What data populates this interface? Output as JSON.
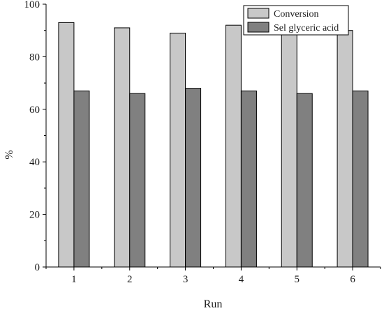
{
  "chart_data": {
    "type": "bar",
    "title": "",
    "xlabel": "Run",
    "ylabel": "%",
    "categories": [
      "1",
      "2",
      "3",
      "4",
      "5",
      "6"
    ],
    "series": [
      {
        "name": "Conversion",
        "values": [
          93,
          91,
          89,
          92,
          90,
          90
        ],
        "color": "#c8c8c8"
      },
      {
        "name": "Sel glyceric acid",
        "values": [
          67,
          66,
          68,
          67,
          66,
          67
        ],
        "color": "#808080"
      }
    ],
    "ylim": [
      0,
      100
    ],
    "yticks": [
      "0",
      "20",
      "40",
      "60",
      "80",
      "100"
    ],
    "grid": false,
    "legend_position": "top-right"
  }
}
